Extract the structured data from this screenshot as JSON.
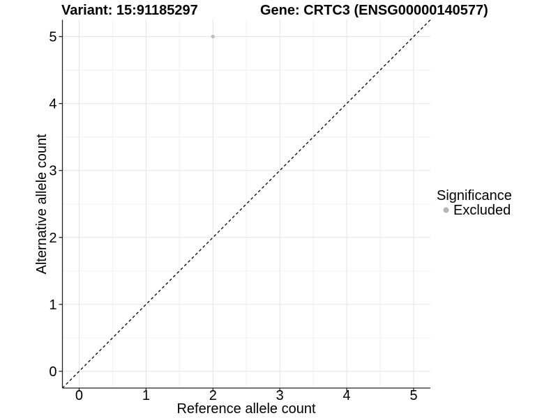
{
  "chart_data": {
    "type": "scatter",
    "title_left": "Variant: 15:91185297",
    "title_right": "Gene: CRTC3 (ENSG00000140577)",
    "xlabel": "Reference allele count",
    "ylabel": "Alternative allele count",
    "xlim": [
      -0.25,
      5.25
    ],
    "ylim": [
      -0.25,
      5.25
    ],
    "x_ticks": [
      0,
      1,
      2,
      3,
      4,
      5
    ],
    "y_ticks": [
      0,
      1,
      2,
      3,
      4,
      5
    ],
    "grid": true,
    "series": [
      {
        "name": "Excluded",
        "color": "#bebebe",
        "points": [
          {
            "x": 2,
            "y": 5
          }
        ]
      }
    ],
    "identity_line": {
      "style": "dashed",
      "color": "#000000",
      "from": -0.25,
      "to": 5.25
    },
    "legend": {
      "title": "Significance",
      "position": "right",
      "items": [
        {
          "label": "Excluded",
          "color": "#b5b5b5"
        }
      ]
    }
  },
  "colors": {
    "background": "#ffffff",
    "grid_major": "#e4e4e4",
    "grid_minor": "#f0f0f0",
    "axis": "#222222",
    "tick_text": "#000000",
    "point": "#bebebe"
  }
}
